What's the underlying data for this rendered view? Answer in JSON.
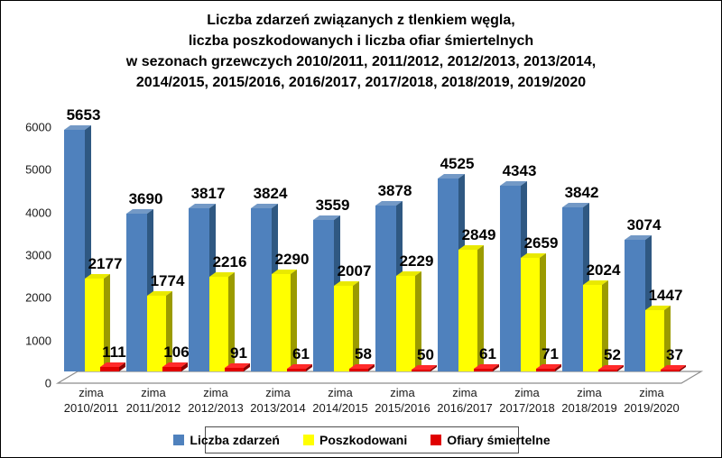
{
  "chart_data": {
    "type": "bar",
    "title_lines": [
      "Liczba zdarzeń związanych z tlenkiem węgla,",
      "liczba poszkodowanych i liczba ofiar śmiertelnych",
      "w sezonach grzewczych 2010/2011, 2011/2012, 2012/2013, 2013/2014,",
      "2014/2015, 2015/2016, 2016/2017, 2017/2018, 2018/2019, 2019/2020"
    ],
    "categories": [
      "zima 2010/2011",
      "zima 2011/2012",
      "zima 2012/2013",
      "zima 2013/2014",
      "zima 2014/2015",
      "zima 2015/2016",
      "zima 2016/2017",
      "zima 2017/2018",
      "zima 2018/2019",
      "zima 2019/2020"
    ],
    "series": [
      {
        "name": "Liczba zdarzeń",
        "color": "#4f81bd",
        "color_dark": "#2f5882",
        "color_light": "#7399c6",
        "values": [
          5653,
          3690,
          3817,
          3824,
          3559,
          3878,
          4525,
          4343,
          3842,
          3074
        ]
      },
      {
        "name": "Poszkodowani",
        "color": "#ffff00",
        "color_dark": "#9b9b00",
        "color_light": "#e9e900",
        "values": [
          2177,
          1774,
          2216,
          2290,
          2007,
          2229,
          2849,
          2659,
          2024,
          1447
        ]
      },
      {
        "name": "Ofiary śmiertelne",
        "color": "#e00000",
        "color_dark": "#8b0000",
        "color_light": "#ff2a2a",
        "values": [
          111,
          106,
          91,
          61,
          58,
          50,
          61,
          71,
          52,
          37
        ]
      }
    ],
    "ylim": [
      0,
      6000
    ],
    "yticks": [
      0,
      1000,
      2000,
      3000,
      4000,
      5000,
      6000
    ],
    "grid": false,
    "legend_position": "bottom",
    "background": "#ffffff"
  }
}
